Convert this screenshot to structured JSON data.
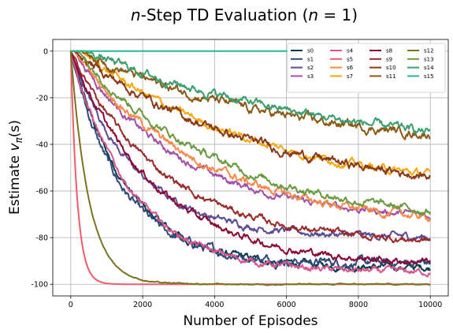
{
  "chart_data": {
    "type": "line",
    "title_prefix": "n",
    "title_middle": "-Step TD Evaluation (",
    "title_var": "n",
    "title_suffix": " = 1)",
    "xlabel": "Number of Episodes",
    "ylabel_text": "Estimate",
    "ylabel_math": "v",
    "ylabel_sub": "π",
    "ylabel_arg": "(s)",
    "xlim": [
      -500,
      10500
    ],
    "ylim": [
      -105,
      5
    ],
    "xticks": [
      0,
      2000,
      4000,
      6000,
      8000,
      10000
    ],
    "yticks": [
      0,
      -20,
      -40,
      -60,
      -80,
      -100
    ],
    "grid": true,
    "legend_position": "top-right",
    "legend_columns": 4,
    "series": [
      {
        "name": "s0",
        "color": "#073b4c",
        "final": -93,
        "tau": 1600,
        "lag": 0,
        "noise": 1.1
      },
      {
        "name": "s1",
        "color": "#2e4a7a",
        "final": -91,
        "tau": 1400,
        "lag": 0,
        "noise": 1.4
      },
      {
        "name": "s2",
        "color": "#5b4a95",
        "final": -80,
        "tau": 1800,
        "lag": 0,
        "noise": 1.1
      },
      {
        "name": "s3",
        "color": "#a450a8",
        "final": -73,
        "tau": 3000,
        "lag": 100,
        "noise": 1.1
      },
      {
        "name": "s4",
        "color": "#d9568e",
        "final": -95,
        "tau": 1700,
        "lag": 0,
        "noise": 1.0
      },
      {
        "name": "s5",
        "color": "#ef5b6b",
        "final": -100,
        "tau": 180,
        "lag": 0,
        "noise": 0.0
      },
      {
        "name": "s6",
        "color": "#f68a4a",
        "final": -76,
        "tau": 3600,
        "lag": 100,
        "noise": 1.3
      },
      {
        "name": "s7",
        "color": "#f4a80c",
        "final": -62,
        "tau": 5000,
        "lag": 300,
        "noise": 1.2
      },
      {
        "name": "s8",
        "color": "#8b0838",
        "final": -92,
        "tau": 2400,
        "lag": 0,
        "noise": 1.1
      },
      {
        "name": "s9",
        "color": "#9b2a2a",
        "final": -83,
        "tau": 2600,
        "lag": 0,
        "noise": 1.1
      },
      {
        "name": "s10",
        "color": "#8b3a18",
        "final": -63,
        "tau": 5200,
        "lag": 100,
        "noise": 1.4
      },
      {
        "name": "s11",
        "color": "#8b5a14",
        "final": -43,
        "tau": 5500,
        "lag": 300,
        "noise": 1.4
      },
      {
        "name": "s12",
        "color": "#7a7420",
        "final": -100,
        "tau": 500,
        "lag": 0,
        "noise": 0.2
      },
      {
        "name": "s13",
        "color": "#6a9a40",
        "final": -75,
        "tau": 4000,
        "lag": 200,
        "noise": 1.2
      },
      {
        "name": "s14",
        "color": "#3aa070",
        "final": -48,
        "tau": 7500,
        "lag": 400,
        "noise": 1.3
      },
      {
        "name": "s15",
        "color": "#2ab49a",
        "final": 0,
        "tau": 1000,
        "lag": 0,
        "noise": 0.0
      }
    ]
  }
}
